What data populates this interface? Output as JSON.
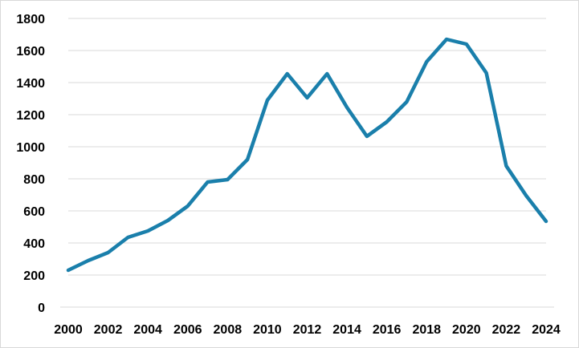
{
  "chart_data": {
    "type": "line",
    "title": "",
    "xlabel": "",
    "ylabel": "",
    "x": [
      2000,
      2001,
      2002,
      2003,
      2004,
      2005,
      2006,
      2007,
      2008,
      2009,
      2010,
      2011,
      2012,
      2013,
      2014,
      2015,
      2016,
      2017,
      2018,
      2019,
      2020,
      2021,
      2022,
      2023,
      2024
    ],
    "series": [
      {
        "values": [
          230,
          290,
          340,
          435,
          475,
          540,
          630,
          780,
          795,
          920,
          1290,
          1455,
          1305,
          1455,
          1245,
          1065,
          1155,
          1280,
          1530,
          1670,
          1640,
          1460,
          880,
          695,
          535
        ],
        "color": "#1a7fab"
      }
    ],
    "x_tick_labels": [
      "2000",
      "2002",
      "2004",
      "2006",
      "2008",
      "2010",
      "2012",
      "2014",
      "2016",
      "2018",
      "2020",
      "2022",
      "2024"
    ],
    "y_tick_labels": [
      "0",
      "200",
      "400",
      "600",
      "800",
      "1000",
      "1200",
      "1400",
      "1600",
      "1800"
    ],
    "ylim": [
      0,
      1800
    ],
    "xlim": [
      2000,
      2024
    ],
    "grid": "horizontal",
    "legend": "none"
  }
}
